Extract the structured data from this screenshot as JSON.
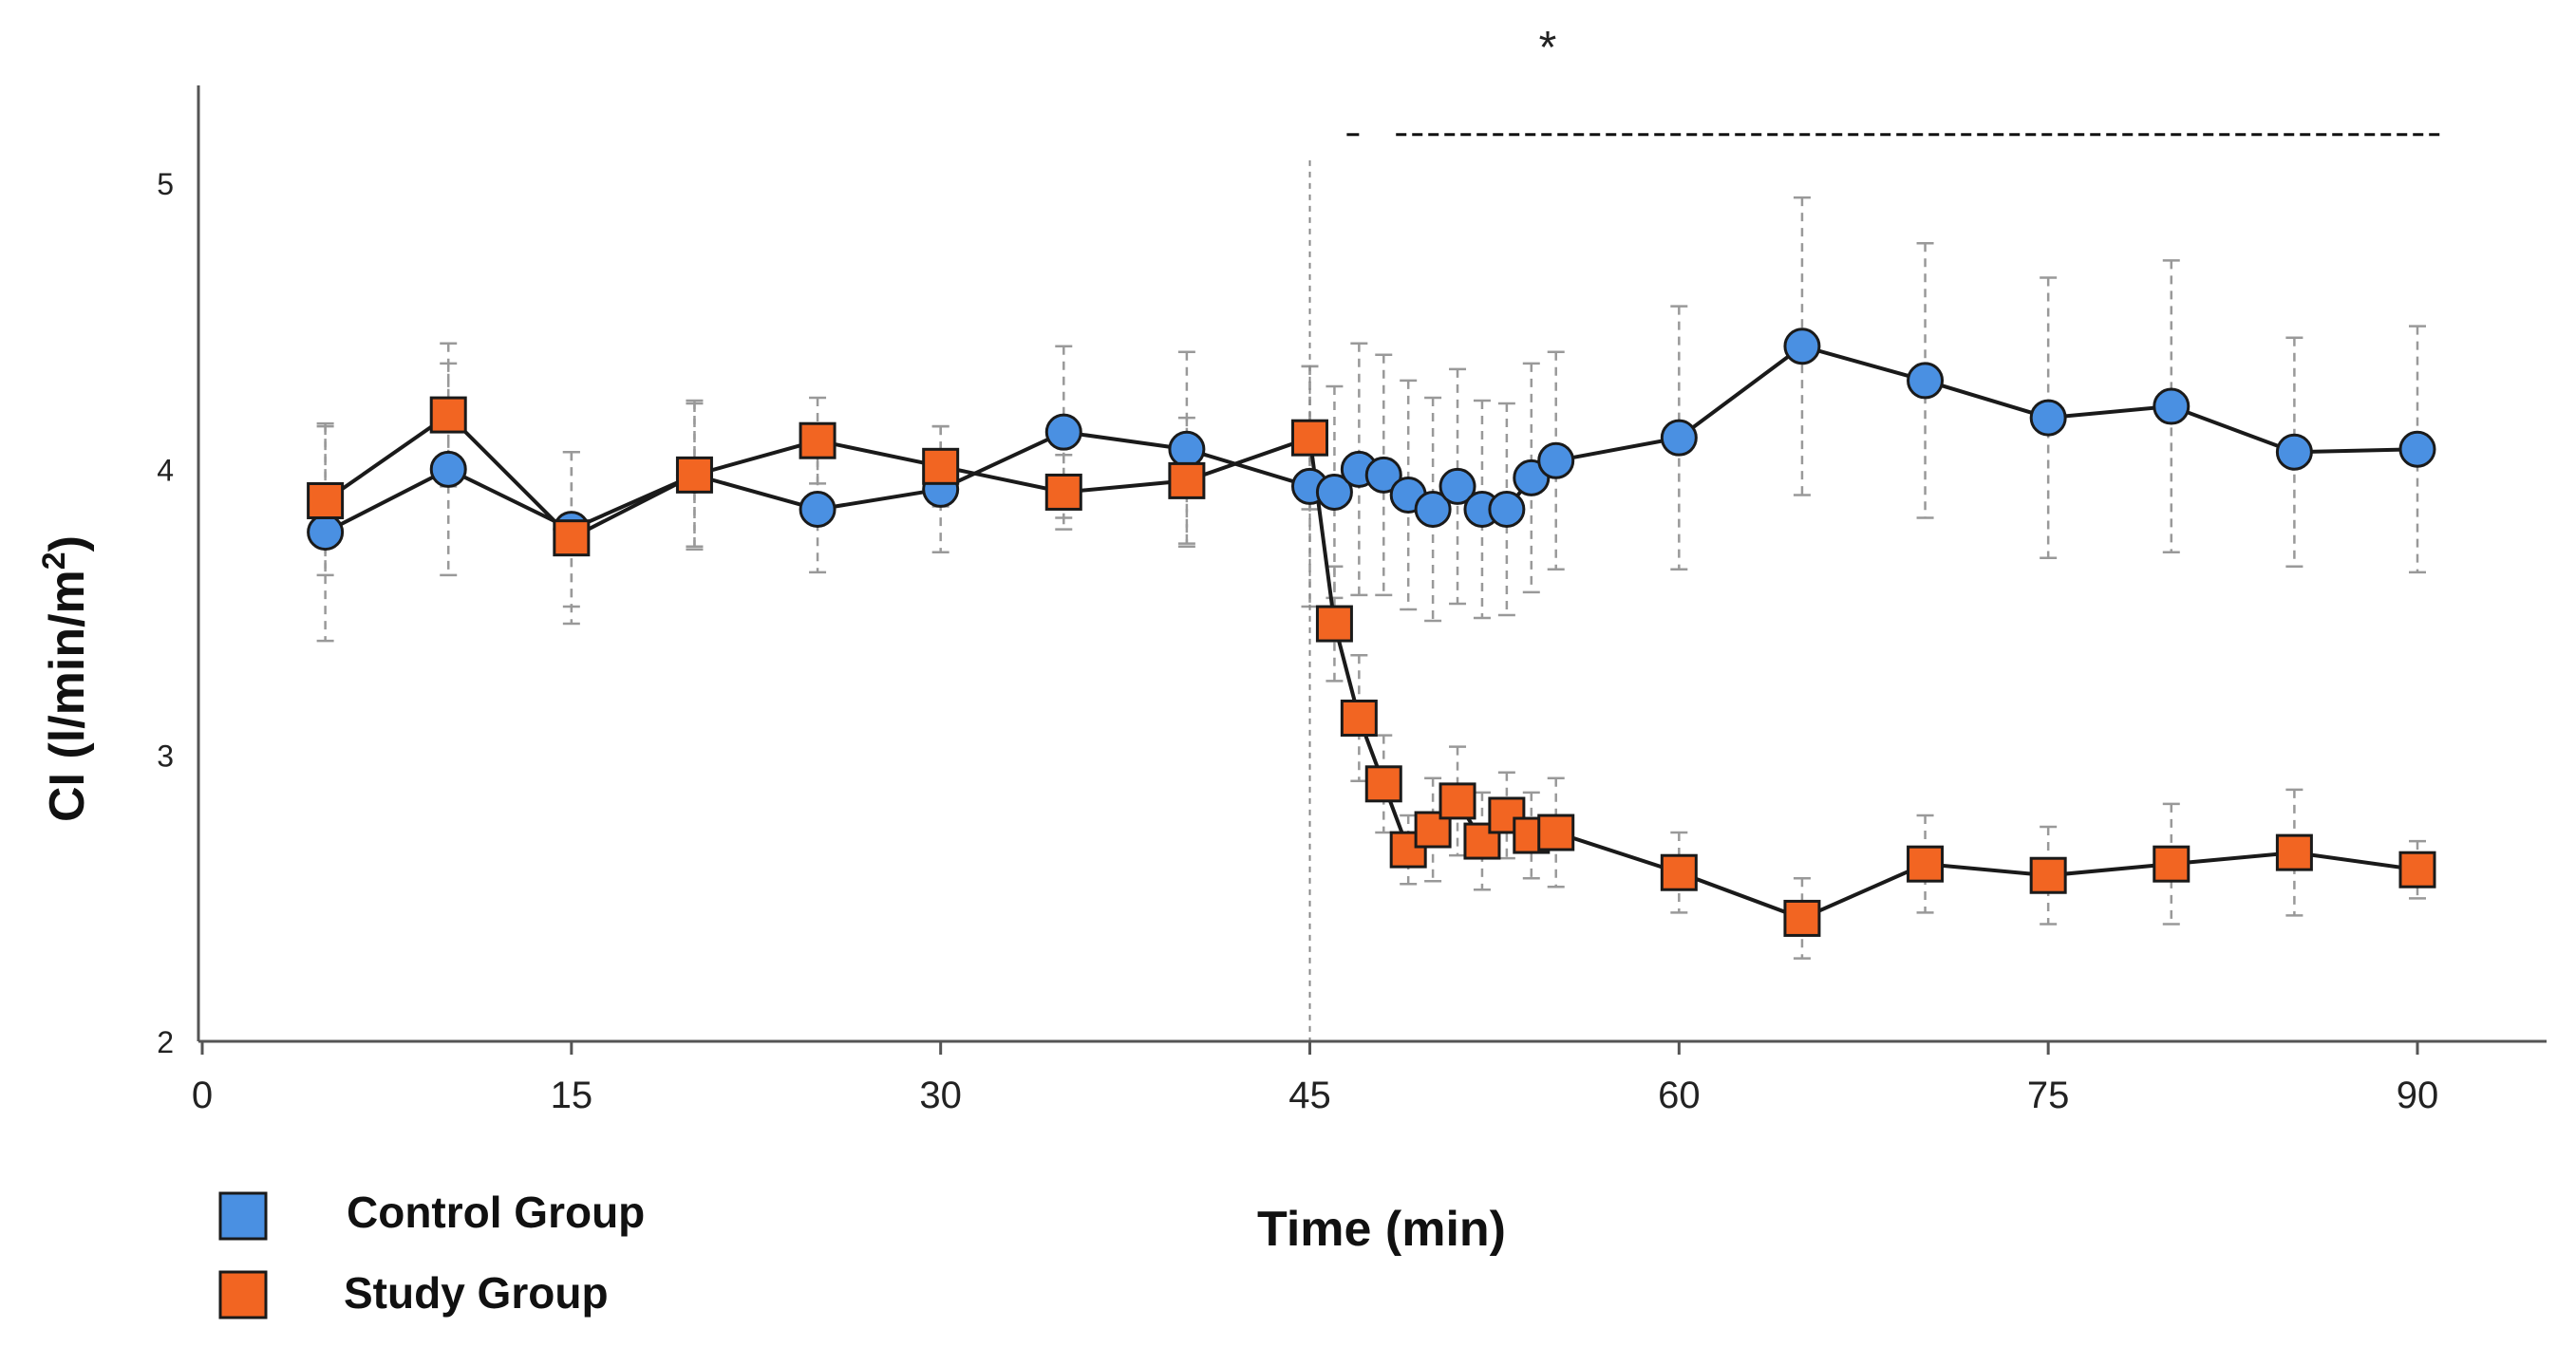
{
  "chart_data": {
    "type": "line",
    "title": "",
    "xlabel": "Time (min)",
    "ylabel": "CI (l/min/m",
    "ylabel_sup": "2",
    "ylabel_close": ")",
    "xlim": [
      0,
      95
    ],
    "ylim": [
      2,
      5.3
    ],
    "x_ticks": [
      0,
      15,
      30,
      45,
      60,
      75,
      90
    ],
    "y_ticks": [
      2,
      3,
      4,
      5
    ],
    "grid": false,
    "legend_position": "bottom-left",
    "annotation": {
      "text": "*",
      "from_x": 48.5,
      "to_x": 91,
      "y": 5.17,
      "short_from_x": 46.5,
      "short_to_x": 47.0
    },
    "event_line_x": 45,
    "series": [
      {
        "name": "Control Group",
        "marker": "circle",
        "color": "#4a90e2",
        "x": [
          5,
          10,
          15,
          20,
          25,
          30,
          35,
          40,
          45,
          46,
          47,
          48,
          49,
          50,
          51,
          52,
          53,
          54,
          55,
          60,
          65,
          70,
          75,
          80,
          85,
          90
        ],
        "y": [
          3.78,
          4.0,
          3.79,
          3.98,
          3.86,
          3.93,
          4.13,
          4.07,
          3.94,
          3.92,
          4.0,
          3.98,
          3.91,
          3.86,
          3.94,
          3.86,
          3.86,
          3.97,
          4.03,
          4.11,
          4.43,
          4.31,
          4.18,
          4.22,
          4.06,
          4.07
        ],
        "error": [
          0.38,
          0.37,
          0.27,
          0.25,
          0.22,
          0.22,
          0.3,
          0.34,
          0.42,
          0.37,
          0.44,
          0.42,
          0.4,
          0.39,
          0.41,
          0.38,
          0.37,
          0.4,
          0.38,
          0.46,
          0.52,
          0.48,
          0.49,
          0.51,
          0.4,
          0.43
        ]
      },
      {
        "name": "Study Group",
        "marker": "square",
        "color": "#f26522",
        "x": [
          5,
          10,
          15,
          20,
          25,
          30,
          35,
          40,
          45,
          46,
          47,
          48,
          49,
          50,
          51,
          52,
          53,
          54,
          55,
          60,
          65,
          70,
          75,
          80,
          85,
          90
        ],
        "y": [
          3.89,
          4.19,
          3.76,
          3.98,
          4.1,
          4.01,
          3.92,
          3.96,
          4.11,
          3.46,
          3.13,
          2.9,
          2.67,
          2.74,
          2.84,
          2.7,
          2.79,
          2.72,
          2.73,
          2.59,
          2.43,
          2.62,
          2.58,
          2.62,
          2.66,
          2.6
        ]
      }
    ]
  }
}
